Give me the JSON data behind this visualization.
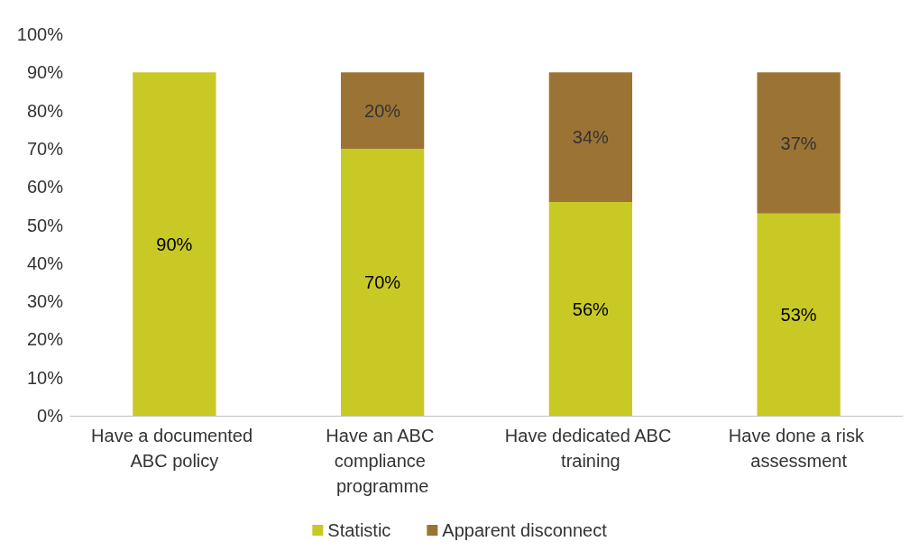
{
  "chart_data": {
    "type": "bar",
    "stacked": true,
    "categories": [
      "Have a documented ABC policy",
      "Have an ABC compliance programme",
      "Have dedicated ABC training",
      "Have done a risk assessment"
    ],
    "series": [
      {
        "name": "Statistic",
        "color": "#c9c926",
        "values": [
          90,
          70,
          56,
          53
        ],
        "value_labels": [
          "90%",
          "70%",
          "56%",
          "53%"
        ]
      },
      {
        "name": "Apparent disconnect",
        "color": "#9b7435",
        "values": [
          null,
          20,
          34,
          37
        ],
        "value_labels": [
          null,
          "20%",
          "34%",
          "37%"
        ]
      }
    ],
    "ylim": [
      0,
      100
    ],
    "yticks": [
      {
        "value": 0,
        "label": "0%"
      },
      {
        "value": 10,
        "label": "10%"
      },
      {
        "value": 20,
        "label": "20%"
      },
      {
        "value": 30,
        "label": "30%"
      },
      {
        "value": 40,
        "label": "40%"
      },
      {
        "value": 50,
        "label": "50%"
      },
      {
        "value": 60,
        "label": "60%"
      },
      {
        "value": 70,
        "label": "70%"
      },
      {
        "value": 80,
        "label": "80%"
      },
      {
        "value": 90,
        "label": "90%"
      },
      {
        "value": 100,
        "label": "100%"
      }
    ],
    "grid": false,
    "legend": "bottom"
  }
}
